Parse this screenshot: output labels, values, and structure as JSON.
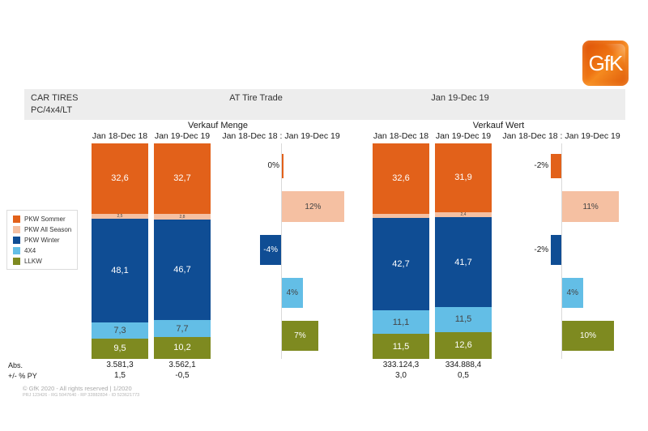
{
  "logo": {
    "text": "GfK"
  },
  "header": {
    "title_line1": "CAR TIRES",
    "title_line2": "PC/4x4/LT",
    "center": "AT Tire Trade",
    "right": "Jan 19-Dec 19"
  },
  "colors": {
    "pkw_sommer": "#E2611A",
    "pkw_all_season": "#F5C0A2",
    "pkw_winter": "#0F4D94",
    "x4x4": "#63BEE6",
    "llkw": "#7E8A20",
    "axis": "#D9D9D9",
    "header_band": "#EDEDED"
  },
  "legend": {
    "items": [
      {
        "key": "pkw_sommer",
        "label": "PKW Sommer"
      },
      {
        "key": "pkw_all_season",
        "label": "PKW All Season"
      },
      {
        "key": "pkw_winter",
        "label": "PKW Winter"
      },
      {
        "key": "x4x4",
        "label": "4X4"
      },
      {
        "key": "llkw",
        "label": "LLKW"
      }
    ]
  },
  "rows": {
    "abs_label": "Abs.",
    "py_label": "+/- % PY"
  },
  "footer": {
    "line1": "© GfK 2020 - All rights reserved | 1/2020",
    "line2": "PRJ 123426 - RG 5047640 - RP 32882834 - ID 523621773"
  },
  "chart_data": [
    {
      "type": "bar",
      "stacked": true,
      "title": "Verkauf Menge",
      "categories": [
        "Jan 18-Dec 18",
        "Jan 19-Dec 19"
      ],
      "diff_title": "Jan 18-Dec 18 : Jan 19-Dec 19",
      "series": [
        {
          "name": "PKW Sommer",
          "key": "pkw_sommer",
          "values": [
            32.6,
            32.7
          ],
          "labels": [
            "32,6",
            "32,7"
          ]
        },
        {
          "name": "PKW All Season",
          "key": "pkw_all_season",
          "values": [
            2.5,
            2.8
          ],
          "labels": [
            "2,5",
            "2,8"
          ]
        },
        {
          "name": "PKW Winter",
          "key": "pkw_winter",
          "values": [
            48.1,
            46.7
          ],
          "labels": [
            "48,1",
            "46,7"
          ]
        },
        {
          "name": "4X4",
          "key": "x4x4",
          "values": [
            7.3,
            7.7
          ],
          "labels": [
            "7,3",
            "7,7"
          ]
        },
        {
          "name": "LLKW",
          "key": "llkw",
          "values": [
            9.5,
            10.2
          ],
          "labels": [
            "9,5",
            "10,2"
          ]
        }
      ],
      "diff_pct": [
        {
          "key": "pkw_sommer",
          "value": 0,
          "label": "0%"
        },
        {
          "key": "pkw_all_season",
          "value": 12,
          "label": "12%"
        },
        {
          "key": "pkw_winter",
          "value": -4,
          "label": "-4%"
        },
        {
          "key": "x4x4",
          "value": 4,
          "label": "4%"
        },
        {
          "key": "llkw",
          "value": 7,
          "label": "7%"
        }
      ],
      "abs": [
        "3.581,3",
        "3.562,1"
      ],
      "py": [
        "1,5",
        "-0,5"
      ]
    },
    {
      "type": "bar",
      "stacked": true,
      "title": "Verkauf Wert",
      "categories": [
        "Jan 18-Dec 18",
        "Jan 19-Dec 19"
      ],
      "diff_title": "Jan 18-Dec 18 : Jan 19-Dec 19",
      "series": [
        {
          "name": "PKW Sommer",
          "key": "pkw_sommer",
          "values": [
            32.6,
            31.9
          ],
          "labels": [
            "32,6",
            "31,9"
          ]
        },
        {
          "name": "PKW All Season",
          "key": "pkw_all_season",
          "values": [
            2.1,
            2.4
          ],
          "labels": [
            "",
            "2,4"
          ]
        },
        {
          "name": "PKW Winter",
          "key": "pkw_winter",
          "values": [
            42.7,
            41.7
          ],
          "labels": [
            "42,7",
            "41,7"
          ]
        },
        {
          "name": "4X4",
          "key": "x4x4",
          "values": [
            11.1,
            11.5
          ],
          "labels": [
            "11,1",
            "11,5"
          ]
        },
        {
          "name": "LLKW",
          "key": "llkw",
          "values": [
            11.5,
            12.6
          ],
          "labels": [
            "11,5",
            "12,6"
          ]
        }
      ],
      "diff_pct": [
        {
          "key": "pkw_sommer",
          "value": -2,
          "label": "-2%"
        },
        {
          "key": "pkw_all_season",
          "value": 11,
          "label": "11%"
        },
        {
          "key": "pkw_winter",
          "value": -2,
          "label": "-2%"
        },
        {
          "key": "x4x4",
          "value": 4,
          "label": "4%"
        },
        {
          "key": "llkw",
          "value": 10,
          "label": "10%"
        }
      ],
      "abs": [
        "333.124,3",
        "334.888,4"
      ],
      "py": [
        "3,0",
        "0,5"
      ]
    }
  ]
}
